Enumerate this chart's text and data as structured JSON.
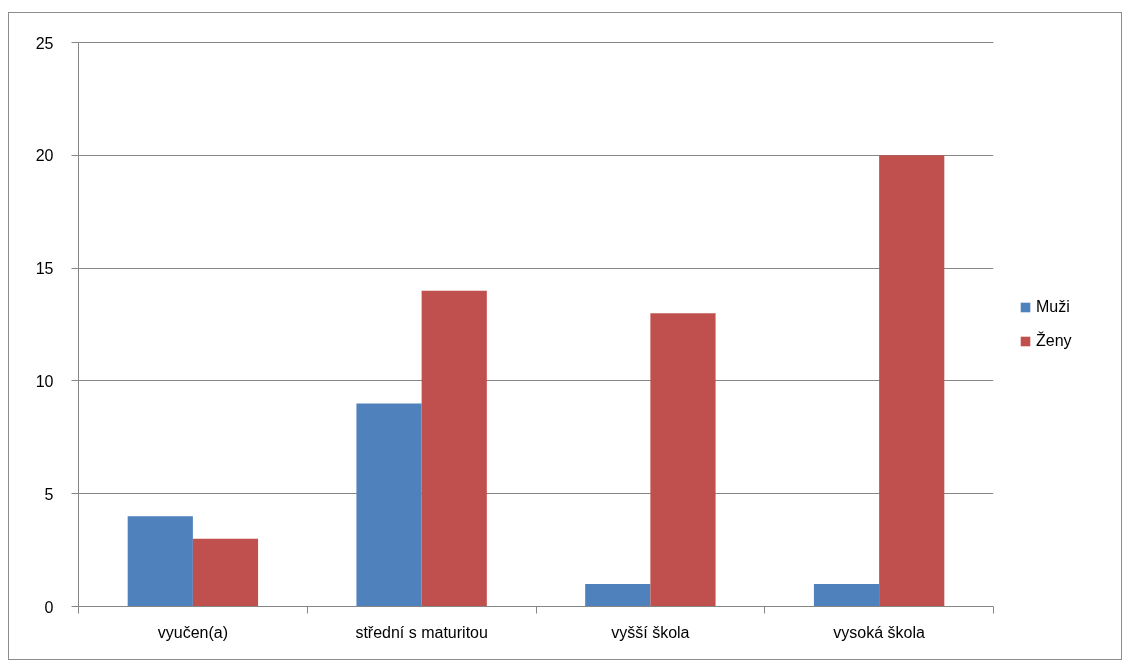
{
  "chart_data": {
    "type": "bar",
    "categories": [
      "vyučen(a)",
      "střední s maturitou",
      "vyšší škola",
      "vysoká škola"
    ],
    "series": [
      {
        "name": "Muži",
        "color": "#4f81bd",
        "values": [
          4,
          9,
          1,
          1
        ]
      },
      {
        "name": "Ženy",
        "color": "#c0504d",
        "values": [
          3,
          14,
          13,
          20
        ]
      }
    ],
    "ylim": [
      0,
      25
    ],
    "yticks": [
      0,
      5,
      10,
      15,
      20,
      25
    ],
    "grid": "y",
    "legend": "right"
  }
}
